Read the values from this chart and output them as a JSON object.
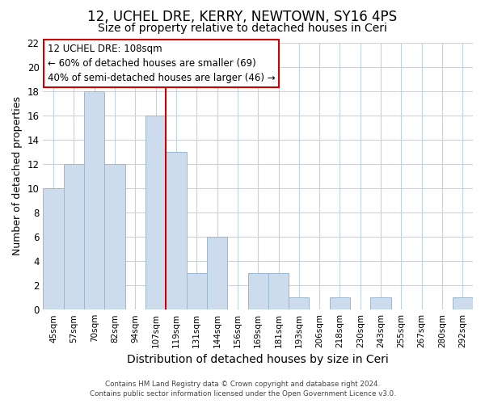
{
  "title": "12, UCHEL DRE, KERRY, NEWTOWN, SY16 4PS",
  "subtitle": "Size of property relative to detached houses in Ceri",
  "xlabel": "Distribution of detached houses by size in Ceri",
  "ylabel": "Number of detached properties",
  "categories": [
    "45sqm",
    "57sqm",
    "70sqm",
    "82sqm",
    "94sqm",
    "107sqm",
    "119sqm",
    "131sqm",
    "144sqm",
    "156sqm",
    "169sqm",
    "181sqm",
    "193sqm",
    "206sqm",
    "218sqm",
    "230sqm",
    "243sqm",
    "255sqm",
    "267sqm",
    "280sqm",
    "292sqm"
  ],
  "values": [
    10,
    12,
    18,
    12,
    0,
    16,
    13,
    3,
    6,
    0,
    3,
    3,
    1,
    0,
    1,
    0,
    1,
    0,
    0,
    0,
    1
  ],
  "bar_color": "#ccdcec",
  "bar_edge_color": "#9ab8d0",
  "marker_line_index": 5,
  "marker_line_color": "#cc0000",
  "ylim": [
    0,
    22
  ],
  "yticks": [
    0,
    2,
    4,
    6,
    8,
    10,
    12,
    14,
    16,
    18,
    20,
    22
  ],
  "annotation_title": "12 UCHEL DRE: 108sqm",
  "annotation_line1": "← 60% of detached houses are smaller (69)",
  "annotation_line2": "40% of semi-detached houses are larger (46) →",
  "footer_line1": "Contains HM Land Registry data © Crown copyright and database right 2024.",
  "footer_line2": "Contains public sector information licensed under the Open Government Licence v3.0.",
  "background_color": "#ffffff",
  "grid_color": "#c0d4e4",
  "title_fontsize": 12,
  "subtitle_fontsize": 10,
  "ylabel_fontsize": 9,
  "xlabel_fontsize": 10
}
